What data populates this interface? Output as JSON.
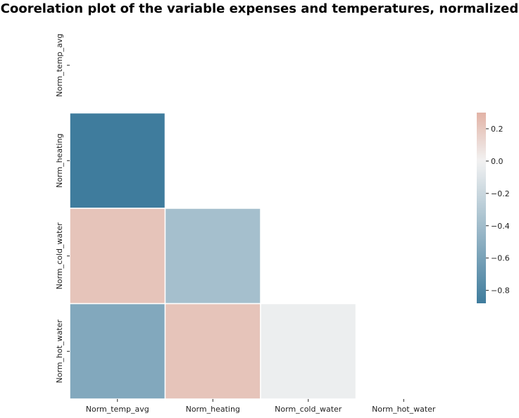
{
  "chart_data": {
    "type": "heatmap",
    "title": "Coorelation plot of the variable expenses and temperatures, normalized",
    "variables": [
      "Norm_temp_avg",
      "Norm_heating",
      "Norm_cold_water",
      "Norm_hot_water"
    ],
    "mask": "upper-triangle-including-diagonal",
    "cells": [
      {
        "row": 1,
        "col": 0,
        "value": -0.88
      },
      {
        "row": 2,
        "col": 0,
        "value": 0.22
      },
      {
        "row": 2,
        "col": 1,
        "value": -0.38
      },
      {
        "row": 3,
        "col": 0,
        "value": -0.55
      },
      {
        "row": 3,
        "col": 1,
        "value": 0.22
      },
      {
        "row": 3,
        "col": 2,
        "value": -0.03
      }
    ],
    "colorbar": {
      "min": -0.88,
      "max": 0.3,
      "ticks": [
        0.2,
        0.0,
        -0.2,
        -0.4,
        -0.6,
        -0.8
      ],
      "tick_labels": [
        "0.2",
        "0.0",
        "−0.2",
        "−0.4",
        "−0.6",
        "−0.8"
      ],
      "position": "right",
      "colors": {
        "neg": "#3f7c9d",
        "mid": "#f2f2f2",
        "pos": "#e2b3a6"
      }
    },
    "cell_border_color": "#ffffff",
    "grid": false
  }
}
